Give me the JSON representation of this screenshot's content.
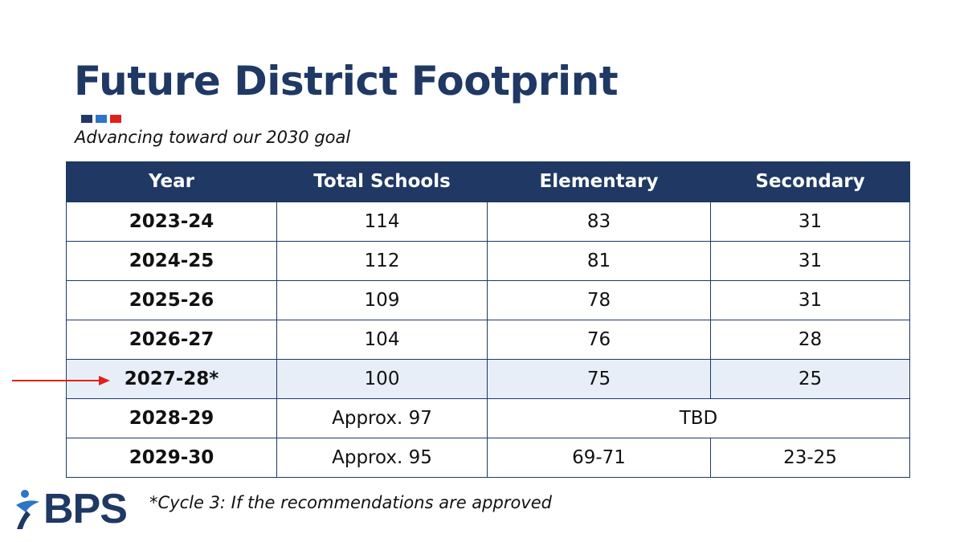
{
  "title": "Future District Footprint",
  "subtitle": "Advancing toward our 2030 goal",
  "colors": {
    "navy": "#1f3864",
    "blue": "#2e75c6",
    "red": "#e0211b",
    "row_highlight": "#e7eef8"
  },
  "accent_squares": [
    "navy",
    "blue",
    "red"
  ],
  "table": {
    "headers": [
      "Year",
      "Total Schools",
      "Elementary",
      "Secondary"
    ],
    "rows": [
      {
        "year": "2023-24",
        "total": "114",
        "elementary": "83",
        "secondary": "31"
      },
      {
        "year": "2024-25",
        "total": "112",
        "elementary": "81",
        "secondary": "31"
      },
      {
        "year": "2025-26",
        "total": "109",
        "elementary": "78",
        "secondary": "31"
      },
      {
        "year": "2026-27",
        "total": "104",
        "elementary": "76",
        "secondary": "28"
      },
      {
        "year": "2027-28*",
        "total": "100",
        "elementary": "75",
        "secondary": "25"
      },
      {
        "year": "2028-29",
        "total": "Approx. 97",
        "combined": "TBD"
      },
      {
        "year": "2029-30",
        "total": "Approx. 95",
        "elementary": "69-71",
        "secondary": "23-25"
      }
    ],
    "highlighted_row": "2027-28*"
  },
  "marker_icon": "red-arrow-icon",
  "logo": {
    "text": "BPS",
    "icon": "person-figure-icon"
  },
  "footnote": "*Cycle 3: If the recommendations are approved"
}
